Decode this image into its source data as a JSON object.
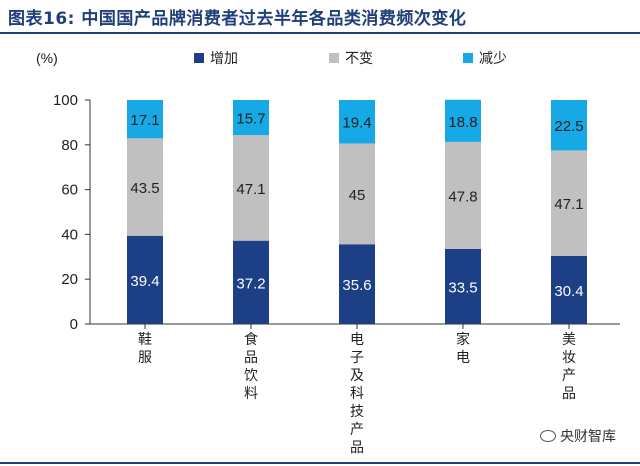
{
  "title": "图表16:  中国国产品牌消费者过去半年各品类消费频次变化",
  "watermark": "央财智库",
  "chart_data": {
    "type": "bar",
    "stacked": true,
    "ylabel": "(%)",
    "ylim": [
      0,
      100
    ],
    "yticks": [
      0,
      20,
      40,
      60,
      80,
      100
    ],
    "grid": false,
    "legend_position": "top",
    "categories": [
      "鞋服",
      "食品饮料",
      "电子及科技产品",
      "家电",
      "美妆产品"
    ],
    "series": [
      {
        "name": "增加",
        "values": [
          39.4,
          37.2,
          35.6,
          33.5,
          30.4
        ],
        "labels": [
          "39.4",
          "37.2",
          "35.6",
          "33.5",
          "30.4"
        ],
        "color": "#1c3f86"
      },
      {
        "name": "不变",
        "values": [
          43.5,
          47.1,
          45,
          47.8,
          47.1
        ],
        "labels": [
          "43.5",
          "47.1",
          "45",
          "47.8",
          "47.1"
        ],
        "color": "#c0c0c0"
      },
      {
        "name": "减少",
        "values": [
          17.1,
          15.7,
          19.4,
          18.8,
          22.5
        ],
        "labels": [
          "17.1",
          "15.7",
          "19.4",
          "18.8",
          "22.5"
        ],
        "color": "#17a9e6"
      }
    ],
    "label_colors": [
      "#ffffff",
      "#222222",
      "#222222"
    ]
  }
}
